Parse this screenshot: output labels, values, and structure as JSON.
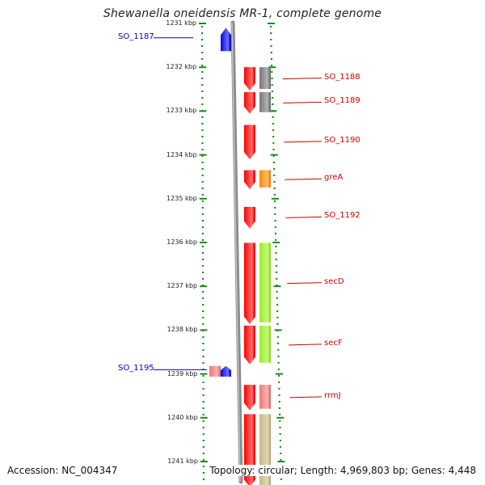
{
  "title": "Shewanella oneidensis MR-1, complete genome",
  "accession": "Accession: NC_004347",
  "topology": "Topology: circular; Length: 4,969,803 bp; Genes: 4,448",
  "ruler": {
    "ticks": [
      {
        "kb": 1231,
        "label": "1231 kbp"
      },
      {
        "kb": 1232,
        "label": "1232 kbp"
      },
      {
        "kb": 1233,
        "label": "1233 kbp"
      },
      {
        "kb": 1234,
        "label": "1234 kbp"
      },
      {
        "kb": 1235,
        "label": "1235 kbp"
      },
      {
        "kb": 1236,
        "label": "1236 kbp"
      },
      {
        "kb": 1237,
        "label": "1237 kbp"
      },
      {
        "kb": 1238,
        "label": "1238 kbp"
      },
      {
        "kb": 1239,
        "label": "1239 kbp"
      },
      {
        "kb": 1240,
        "label": "1240 kbp"
      },
      {
        "kb": 1241,
        "label": "1241 kbp"
      }
    ]
  },
  "genes": [
    {
      "name": "SO_1187",
      "start_kb": 1231.08,
      "end_kb": 1231.65,
      "strand": "reverse",
      "color": "#0000ee",
      "label_color": "#0000cc"
    },
    {
      "name": "SO_1188",
      "start_kb": 1231.98,
      "end_kb": 1232.55,
      "strand": "forward",
      "color": "#ff0000",
      "cog_color": "#777777",
      "label_color": "#cc0000"
    },
    {
      "name": "SO_1189",
      "start_kb": 1232.55,
      "end_kb": 1233.08,
      "strand": "forward",
      "color": "#ff0000",
      "cog_color": "#777777",
      "label_color": "#cc0000"
    },
    {
      "name": "SO_1190",
      "start_kb": 1233.3,
      "end_kb": 1234.12,
      "strand": "forward",
      "color": "#ff0000",
      "label_color": "#cc0000"
    },
    {
      "name": "greA",
      "start_kb": 1234.33,
      "end_kb": 1234.8,
      "strand": "forward",
      "color": "#ff0000",
      "cog_color": "#ff8800",
      "label_color": "#cc0000"
    },
    {
      "name": "SO_1192",
      "start_kb": 1235.17,
      "end_kb": 1235.7,
      "strand": "forward",
      "color": "#ff0000",
      "label_color": "#cc0000"
    },
    {
      "name": "secD",
      "start_kb": 1235.99,
      "end_kb": 1237.88,
      "strand": "forward",
      "color": "#ff0000",
      "cog_color": "#99ee22",
      "label_color": "#cc0000"
    },
    {
      "name": "secF",
      "start_kb": 1237.88,
      "end_kb": 1238.8,
      "strand": "forward",
      "color": "#ff0000",
      "cog_color": "#99ee22",
      "label_color": "#cc0000"
    },
    {
      "name": "SO_1195",
      "start_kb": 1238.8,
      "end_kb": 1239.08,
      "strand": "reverse",
      "color": "#0000ee",
      "cog_color": "#ee7777",
      "label_color": "#0000cc"
    },
    {
      "name": "rrmJ",
      "start_kb": 1239.23,
      "end_kb": 1239.85,
      "strand": "forward",
      "color": "#ff0000",
      "cog_color": "#ee7777",
      "label_color": "#cc0000"
    },
    {
      "name": "",
      "start_kb": 1239.9,
      "end_kb": 1241.6,
      "strand": "forward",
      "color": "#ff0000",
      "cog_color": "#c4b880",
      "label_color": "#cc0000"
    }
  ]
}
